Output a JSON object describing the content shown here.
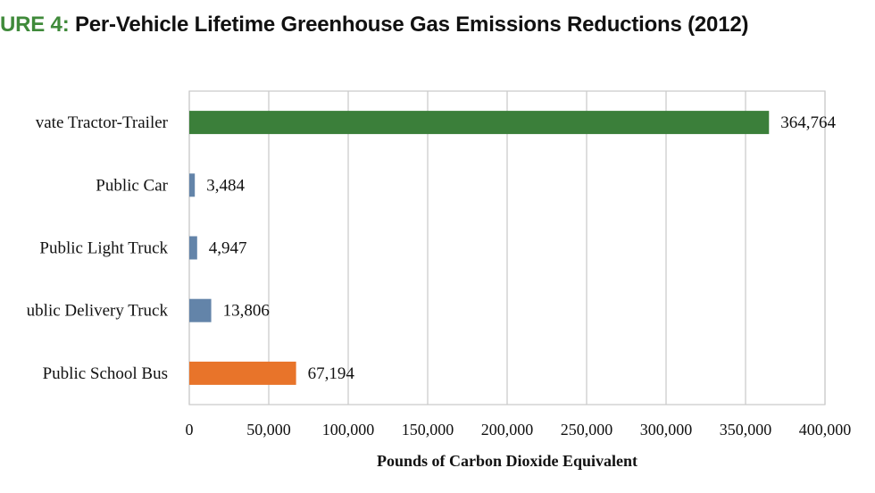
{
  "title": {
    "prefix": "URE 4:",
    "main": "Per-Vehicle Lifetime Greenhouse Gas Emissions Reductions (2012)"
  },
  "chart_data": {
    "type": "bar",
    "orientation": "horizontal",
    "title": "Per-Vehicle Lifetime Greenhouse Gas Emissions Reductions (2012)",
    "xlabel": "Pounds of Carbon Dioxide Equivalent",
    "ylabel": "",
    "xlim": [
      0,
      400000
    ],
    "xticks": [
      0,
      50000,
      100000,
      150000,
      200000,
      250000,
      300000,
      350000,
      400000
    ],
    "xtick_labels": [
      "0",
      "50,000",
      "100,000",
      "150,000",
      "200,000",
      "250,000",
      "300,000",
      "350,000",
      "400,000"
    ],
    "grid": "vertical",
    "categories": [
      "vate Tractor-Trailer",
      "Public Car",
      "Public Light Truck",
      "ublic Delivery Truck",
      "Public School Bus"
    ],
    "values": [
      364764,
      3484,
      4947,
      13806,
      67194
    ],
    "value_labels": [
      "364,764",
      "3,484",
      "4,947",
      "13,806",
      "67,194"
    ],
    "colors": [
      "#3b7f3a",
      "#6384a9",
      "#6384a9",
      "#6384a9",
      "#e8742a"
    ]
  }
}
